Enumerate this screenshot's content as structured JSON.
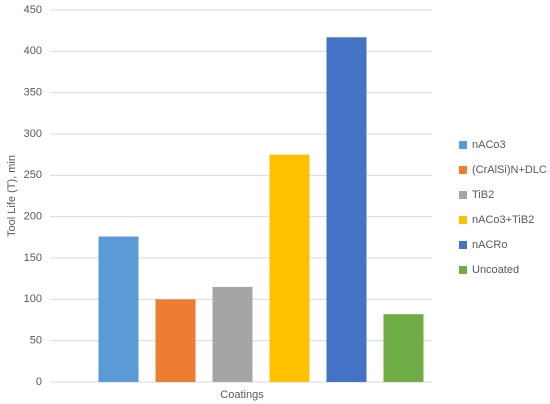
{
  "chart_data": {
    "type": "bar",
    "x_label": "Coatings",
    "y_label": "Tool Life (T), min",
    "series": [
      {
        "name": "nACo3",
        "color": "#5b9bd5",
        "values": [
          176
        ]
      },
      {
        "name": "(CrAlSi)N+DLC",
        "color": "#ed7d31",
        "values": [
          100
        ]
      },
      {
        "name": "TiB2",
        "color": "#a5a5a5",
        "values": [
          115
        ]
      },
      {
        "name": "nACo3+TiB2",
        "color": "#ffc000",
        "values": [
          275
        ]
      },
      {
        "name": "nACRo",
        "color": "#4472c4",
        "values": [
          417
        ]
      },
      {
        "name": "Uncoated",
        "color": "#70ad47",
        "values": [
          82
        ]
      }
    ],
    "ylim": [
      0,
      450
    ],
    "yticks": [
      0,
      50,
      100,
      150,
      200,
      250,
      300,
      350,
      400,
      450
    ],
    "grid": true,
    "legend": "right"
  }
}
